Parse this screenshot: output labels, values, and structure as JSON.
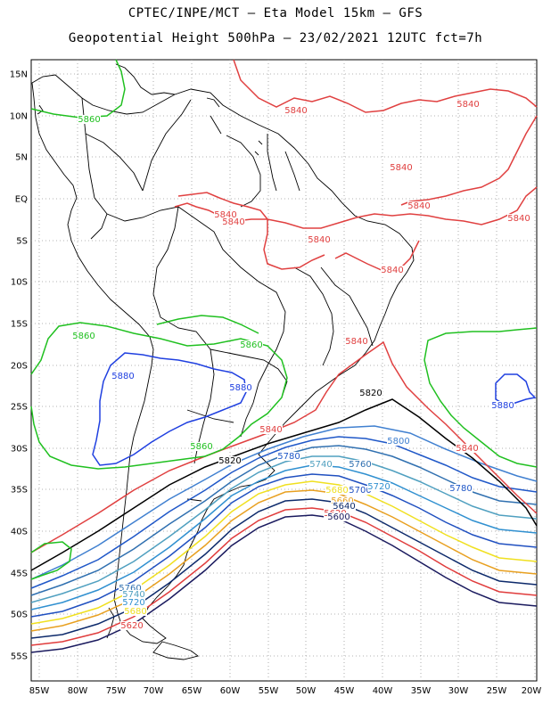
{
  "title_line1": "CPTEC/INPE/MCT –  Eta Model 15km – GFS",
  "title_line2": "Geopotential Height 500hPa – 23/02/2021 12UTC fct=7h",
  "lat_ticks": [
    "15N",
    "10N",
    "5N",
    "EQ",
    "5S",
    "10S",
    "15S",
    "20S",
    "25S",
    "30S",
    "35S",
    "40S",
    "45S",
    "50S",
    "55S"
  ],
  "lon_ticks": [
    "85W",
    "80W",
    "75W",
    "70W",
    "65W",
    "60W",
    "55W",
    "50W",
    "45W",
    "40W",
    "35W",
    "30W",
    "25W",
    "20W"
  ],
  "contour_colors": {
    "5600": "#1a1a5e",
    "5620": "#e03c3c",
    "5640": "#0d2a6b",
    "5660": "#e8a020",
    "5680": "#f0e020",
    "5700": "#2050c0",
    "5720": "#3090d0",
    "5740": "#50a0c0",
    "5760": "#3070b0",
    "5780": "#2058c8",
    "5800": "#4080d0",
    "5820": "#000000",
    "5840": "#e04040",
    "5860": "#20c020",
    "5880": "#2040e0"
  },
  "contour_labels": [
    {
      "text": "5860",
      "key": "5860"
    },
    {
      "text": "5840",
      "key": "5840"
    },
    {
      "text": "5840",
      "key": "5840"
    },
    {
      "text": "5840",
      "key": "5840"
    },
    {
      "text": "5840",
      "key": "5840"
    },
    {
      "text": "5840",
      "key": "5840"
    },
    {
      "text": "5840",
      "key": "5840"
    },
    {
      "text": "5840",
      "key": "5840"
    },
    {
      "text": "5840",
      "key": "5840"
    },
    {
      "text": "5840",
      "key": "5840"
    },
    {
      "text": "5860",
      "key": "5860"
    },
    {
      "text": "5860",
      "key": "5860"
    },
    {
      "text": "5840",
      "key": "5840"
    },
    {
      "text": "5880",
      "key": "5880"
    },
    {
      "text": "5880",
      "key": "5880"
    },
    {
      "text": "5880",
      "key": "5880"
    },
    {
      "text": "5820",
      "key": "5820"
    },
    {
      "text": "5840",
      "key": "5840"
    },
    {
      "text": "5840",
      "key": "5840"
    },
    {
      "text": "5800",
      "key": "5800"
    },
    {
      "text": "5860",
      "key": "5860"
    },
    {
      "text": "5820",
      "key": "5820"
    },
    {
      "text": "5780",
      "key": "5780"
    },
    {
      "text": "5740",
      "key": "5740"
    },
    {
      "text": "5760",
      "key": "5760"
    },
    {
      "text": "5780",
      "key": "5780"
    },
    {
      "text": "5680",
      "key": "5680"
    },
    {
      "text": "5700",
      "key": "5700"
    },
    {
      "text": "5720",
      "key": "5720"
    },
    {
      "text": "5660",
      "key": "5660"
    },
    {
      "text": "5640",
      "key": "5640"
    },
    {
      "text": "5620",
      "key": "5620"
    },
    {
      "text": "5600",
      "key": "5600"
    },
    {
      "text": "5760",
      "key": "5760"
    },
    {
      "text": "5740",
      "key": "5740"
    },
    {
      "text": "5720",
      "key": "5720"
    },
    {
      "text": "5680",
      "key": "5680"
    },
    {
      "text": "5620",
      "key": "5620"
    }
  ]
}
